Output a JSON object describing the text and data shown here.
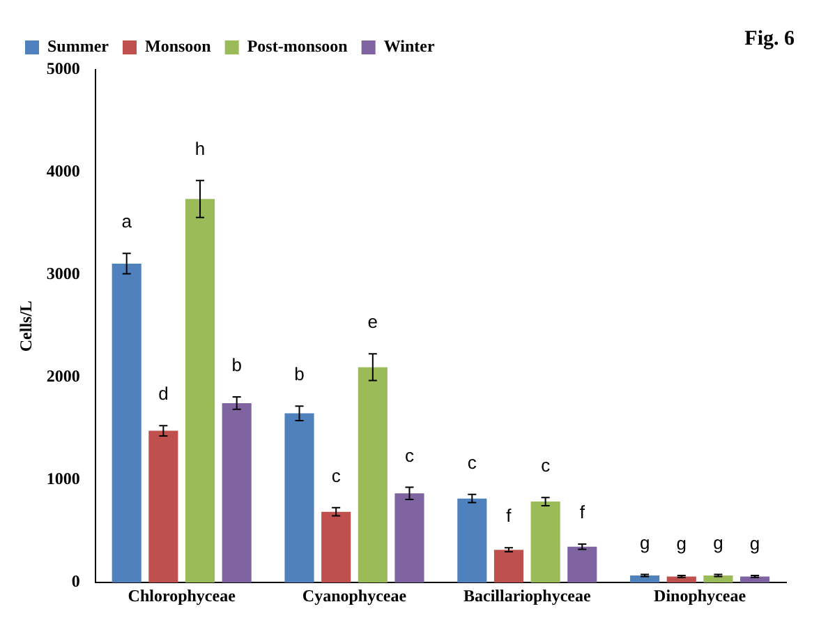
{
  "chart_data": {
    "type": "bar",
    "title": "Fig. 6",
    "ylabel": "Cells/L",
    "categories": [
      "Chlorophyceae",
      "Cyanophyceae",
      "Bacillariophyceae",
      "Dinophyceae"
    ],
    "series": [
      {
        "name": "Summer",
        "color": "#4f81bd",
        "values": [
          3110,
          1650,
          820,
          70
        ],
        "errors": [
          100,
          70,
          40,
          10
        ]
      },
      {
        "name": "Monsoon",
        "color": "#c0504d",
        "values": [
          1480,
          690,
          320,
          60
        ],
        "errors": [
          50,
          40,
          20,
          10
        ]
      },
      {
        "name": "Post-monsoon",
        "color": "#9bbb59",
        "values": [
          3740,
          2100,
          790,
          70
        ],
        "errors": [
          180,
          130,
          40,
          10
        ]
      },
      {
        "name": "Winter",
        "color": "#8064a2",
        "values": [
          1750,
          870,
          350,
          60
        ],
        "errors": [
          60,
          60,
          25,
          10
        ]
      }
    ],
    "ylim": [
      0,
      5000
    ],
    "yticks": [
      0,
      1000,
      2000,
      3000,
      4000,
      5000
    ],
    "grid": false,
    "legend": "top",
    "annotations": [
      "a",
      "d",
      "h",
      "b",
      "b",
      "c",
      "e",
      "c",
      "c",
      "f",
      "c",
      "f",
      "g",
      "g",
      "g",
      "g"
    ]
  }
}
